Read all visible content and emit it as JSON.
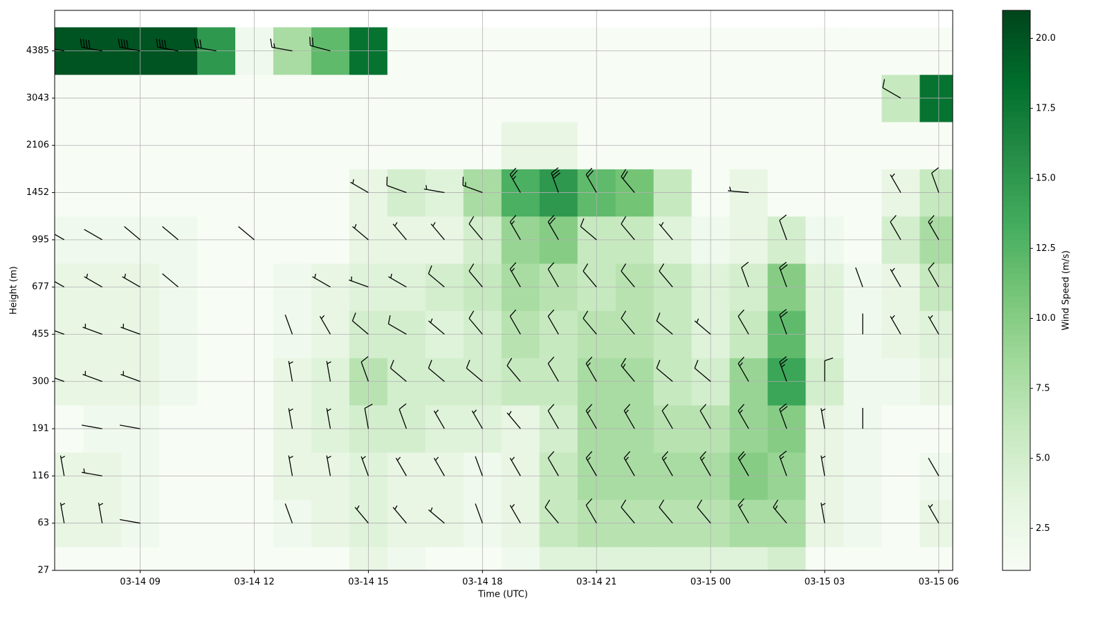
{
  "chart_data": {
    "type": "barb-heatmap",
    "xlabel": "Time (UTC)",
    "ylabel": "Height (m)",
    "colorbar_label": "Wind Speed (m/s)",
    "colormap": "Greens",
    "grid": true,
    "xlim": [
      "03-14 06:45",
      "03-15 06:22"
    ],
    "xticks": [
      {
        "value": "03-14 09:00",
        "label": "03-14 09"
      },
      {
        "value": "03-14 12:00",
        "label": "03-14 12"
      },
      {
        "value": "03-14 15:00",
        "label": "03-14 15"
      },
      {
        "value": "03-14 18:00",
        "label": "03-14 18"
      },
      {
        "value": "03-14 21:00",
        "label": "03-14 21"
      },
      {
        "value": "03-15 00:00",
        "label": "03-15 00"
      },
      {
        "value": "03-15 03:00",
        "label": "03-15 03"
      },
      {
        "value": "03-15 06:00",
        "label": "03-15 06"
      }
    ],
    "ylim": [
      27,
      6000
    ],
    "yticks": [
      27,
      63,
      116,
      191,
      300,
      455,
      677,
      995,
      1452,
      2106,
      3043,
      4385
    ],
    "clim": [
      1,
      21
    ],
    "cticks": [
      2.5,
      {
        "value": 5,
        "label": "5.0"
      },
      7.5,
      {
        "value": 10,
        "label": "10.0"
      },
      12.5,
      {
        "value": 15,
        "label": "15.0"
      },
      17.5,
      {
        "value": 20,
        "label": "20.0"
      }
    ],
    "x": [
      "03-14 07:00",
      "03-14 08:00",
      "03-14 09:00",
      "03-14 10:00",
      "03-14 11:00",
      "03-14 12:00",
      "03-14 13:00",
      "03-14 14:00",
      "03-14 15:00",
      "03-14 16:00",
      "03-14 17:00",
      "03-14 18:00",
      "03-14 19:00",
      "03-14 20:00",
      "03-14 21:00",
      "03-14 22:00",
      "03-14 23:00",
      "03-15 00:00",
      "03-15 01:00",
      "03-15 02:00",
      "03-15 03:00",
      "03-15 04:00",
      "03-15 05:00",
      "03-15 06:00"
    ],
    "y": [
      27,
      63,
      116,
      191,
      300,
      455,
      677,
      995,
      1452,
      2106,
      3043,
      4385
    ],
    "speed": [
      [
        1,
        1,
        1,
        1,
        1,
        1,
        1,
        1,
        3,
        2,
        1,
        1,
        2,
        4,
        4,
        4,
        4,
        4,
        4,
        5,
        1,
        1,
        1,
        1
      ],
      [
        3,
        3,
        2,
        1,
        1,
        1,
        2,
        3,
        4,
        3,
        3,
        2,
        3,
        6,
        7,
        7,
        7,
        7,
        8,
        8,
        3,
        2,
        1,
        3
      ],
      [
        3,
        3,
        2,
        1,
        1,
        1,
        3,
        3,
        4,
        3,
        3,
        2,
        3,
        6,
        8,
        8,
        8,
        8,
        10,
        9,
        3,
        2,
        1,
        2
      ],
      [
        1,
        2,
        2,
        1,
        1,
        1,
        3,
        4,
        5,
        5,
        4,
        4,
        3,
        5,
        8,
        8,
        7,
        7,
        9,
        10,
        3,
        2,
        1,
        1
      ],
      [
        3,
        3,
        3,
        2,
        1,
        1,
        3,
        4,
        7,
        5,
        5,
        5,
        6,
        6,
        8,
        8,
        6,
        5,
        9,
        14,
        5,
        2,
        2,
        3
      ],
      [
        3,
        3,
        3,
        2,
        1,
        1,
        2,
        3,
        5,
        5,
        4,
        5,
        7,
        6,
        7,
        7,
        6,
        4,
        6,
        12,
        4,
        2,
        3,
        4
      ],
      [
        3,
        3,
        3,
        2,
        1,
        1,
        2,
        3,
        4,
        4,
        5,
        6,
        8,
        7,
        6,
        7,
        6,
        4,
        5,
        10,
        4,
        2,
        3,
        6
      ],
      [
        2,
        2,
        2,
        2,
        1,
        1,
        1,
        1,
        3,
        3,
        3,
        5,
        9,
        10,
        6,
        6,
        4,
        2,
        3,
        5,
        2,
        1,
        5,
        8
      ],
      [
        1,
        1,
        1,
        1,
        1,
        1,
        1,
        1,
        3,
        5,
        4,
        8,
        13,
        15,
        12,
        11,
        6,
        1,
        3,
        1,
        1,
        1,
        3,
        6
      ],
      [
        1,
        1,
        1,
        1,
        1,
        1,
        1,
        1,
        1,
        1,
        1,
        1,
        3,
        3,
        1,
        1,
        1,
        1,
        1,
        1,
        1,
        1,
        1,
        1
      ],
      [
        1,
        1,
        1,
        1,
        1,
        1,
        1,
        1,
        1,
        1,
        1,
        1,
        1,
        1,
        1,
        1,
        1,
        1,
        1,
        1,
        1,
        1,
        6,
        18
      ],
      [
        20,
        20,
        20,
        20,
        15,
        2,
        8,
        12,
        18,
        1,
        1,
        1,
        1,
        1,
        1,
        1,
        1,
        1,
        1,
        1,
        1,
        1,
        1,
        1
      ]
    ],
    "direction": [
      [
        null,
        null,
        null,
        null,
        null,
        null,
        null,
        null,
        null,
        null,
        null,
        null,
        null,
        null,
        null,
        null,
        null,
        null,
        null,
        null,
        null,
        null,
        null,
        null
      ],
      [
        350,
        350,
        280,
        null,
        null,
        null,
        340,
        null,
        320,
        320,
        310,
        340,
        330,
        320,
        330,
        320,
        320,
        320,
        330,
        320,
        350,
        null,
        null,
        330
      ],
      [
        350,
        280,
        null,
        null,
        null,
        null,
        350,
        350,
        340,
        330,
        330,
        340,
        330,
        330,
        330,
        330,
        330,
        330,
        330,
        340,
        350,
        null,
        null,
        330
      ],
      [
        null,
        280,
        280,
        null,
        null,
        null,
        350,
        350,
        350,
        340,
        330,
        330,
        320,
        330,
        330,
        330,
        330,
        330,
        330,
        340,
        350,
        360,
        null,
        null
      ],
      [
        290,
        290,
        290,
        null,
        null,
        null,
        350,
        350,
        340,
        310,
        310,
        310,
        320,
        330,
        330,
        320,
        310,
        310,
        330,
        340,
        360,
        null,
        null,
        null
      ],
      [
        290,
        290,
        290,
        null,
        null,
        null,
        340,
        330,
        310,
        300,
        310,
        320,
        330,
        330,
        320,
        320,
        310,
        310,
        330,
        340,
        null,
        360,
        330,
        330
      ],
      [
        300,
        300,
        300,
        310,
        null,
        null,
        null,
        300,
        290,
        300,
        310,
        320,
        330,
        330,
        320,
        320,
        320,
        null,
        340,
        340,
        null,
        340,
        330,
        330
      ],
      [
        300,
        300,
        310,
        310,
        null,
        310,
        null,
        null,
        310,
        320,
        320,
        320,
        330,
        330,
        310,
        320,
        320,
        null,
        null,
        340,
        null,
        null,
        330,
        330
      ],
      [
        null,
        null,
        null,
        null,
        null,
        null,
        null,
        null,
        300,
        290,
        280,
        290,
        330,
        340,
        330,
        320,
        null,
        null,
        275,
        null,
        null,
        null,
        330,
        340
      ],
      [
        null,
        null,
        null,
        null,
        null,
        null,
        null,
        null,
        null,
        null,
        null,
        null,
        null,
        null,
        null,
        null,
        null,
        null,
        null,
        null,
        null,
        null,
        null,
        null
      ],
      [
        null,
        null,
        null,
        null,
        null,
        null,
        null,
        null,
        null,
        null,
        null,
        null,
        null,
        null,
        null,
        null,
        null,
        null,
        null,
        null,
        null,
        null,
        300,
        null
      ],
      [
        280,
        280,
        280,
        280,
        280,
        null,
        280,
        285,
        null,
        null,
        null,
        null,
        null,
        null,
        null,
        null,
        null,
        null,
        null,
        null,
        null,
        null,
        null,
        null
      ]
    ]
  }
}
